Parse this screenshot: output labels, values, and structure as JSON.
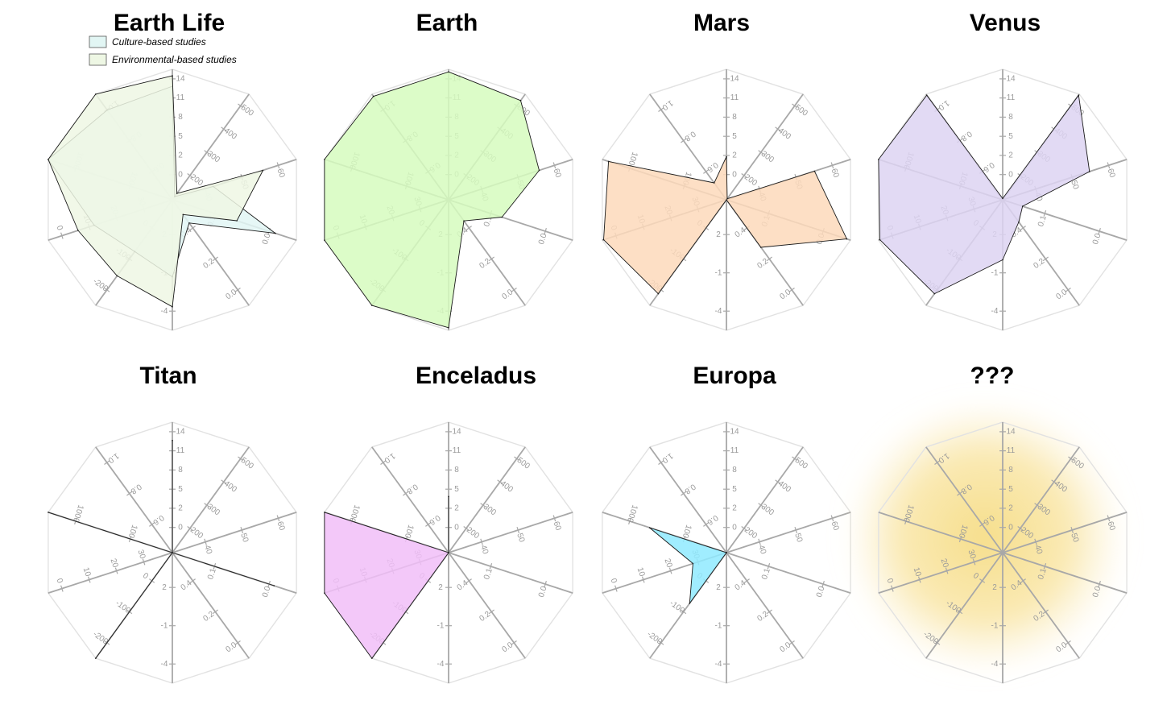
{
  "chart_data": {
    "type": "radar",
    "legend": {
      "placement": "top-left",
      "entries": [
        {
          "label": "Culture-based studies",
          "color": "#e2f6f4"
        },
        {
          "label": "Environmental-based studies",
          "color": "#eef7e4"
        }
      ]
    },
    "axes": [
      {
        "ticks": [
          "0",
          "2",
          "5",
          "8",
          "11",
          "14"
        ],
        "range": [
          -4,
          14
        ]
      },
      {
        "ticks": [
          "200",
          "300",
          "400",
          "500"
        ],
        "range": [
          100,
          500
        ]
      },
      {
        "ticks": [
          "40",
          "50",
          "60"
        ],
        "range": [
          30,
          60
        ]
      },
      {
        "ticks": [
          "0.1",
          "0.0"
        ],
        "range": [
          0.15,
          0.0
        ]
      },
      {
        "ticks": [
          "0.4",
          "0.2",
          "0.0"
        ],
        "range": [
          0.5,
          0.0
        ]
      },
      {
        "ticks": [
          "2",
          "-1",
          "-4"
        ],
        "range": [
          5,
          -4
        ]
      },
      {
        "ticks": [
          "0",
          "-100",
          "-200"
        ],
        "range": [
          100,
          -200
        ]
      },
      {
        "ticks": [
          "30",
          "20",
          "10",
          "0"
        ],
        "range": [
          40,
          0
        ]
      },
      {
        "ticks": [
          "100",
          "1000"
        ],
        "range": [
          10,
          1000
        ]
      },
      {
        "ticks": [
          "0.6",
          "0.8",
          "1.0"
        ],
        "range": [
          0.4,
          1.0
        ]
      }
    ],
    "panels": [
      {
        "title": "Earth Life",
        "series": [
          {
            "name": "Culture-based studies",
            "color": "#e2f6f4",
            "values": [
              0.87,
              0.03,
              0.33,
              0.83,
              0.22,
              0.59,
              0.49,
              0.63,
              1.0,
              0.85
            ]
          },
          {
            "name": "Environmental-based studies",
            "color": "#eef7e4",
            "values": [
              0.95,
              0.06,
              0.73,
              0.52,
              0.14,
              0.82,
              0.72,
              0.76,
              1.0,
              1.0
            ]
          }
        ]
      },
      {
        "title": "Earth",
        "series": [
          {
            "color": "#d6fcbe",
            "values": [
              0.98,
              0.94,
              0.73,
              0.43,
              0.2,
              0.98,
              1.0,
              1.0,
              1.0,
              0.98
            ]
          }
        ]
      },
      {
        "title": "Mars",
        "series": [
          {
            "color": "#fdd9bb",
            "values": [
              0.33,
              0.01,
              0.71,
              0.97,
              0.45,
              0.0,
              0.89,
              0.99,
              0.95,
              0.16
            ]
          }
        ]
      },
      {
        "title": "Venus",
        "series": [
          {
            "color": "#ddd4f2",
            "values": [
              0.01,
              0.99,
              0.7,
              0.16,
              0.21,
              0.46,
              0.89,
              0.99,
              1.0,
              0.99
            ]
          }
        ]
      },
      {
        "title": "Titan",
        "series": [
          {
            "color": "#5ee1cf",
            "values": [
              0.86,
              0.0,
              0.0,
              0.82,
              0.0,
              0.0,
              1.0,
              0.0,
              1.0,
              0.0
            ]
          }
        ]
      },
      {
        "title": "Enceladus",
        "series": [
          {
            "color": "#f1bef8",
            "values": [
              0.43,
              0.0,
              0.0,
              0.0,
              0.0,
              0.0,
              1.0,
              1.0,
              1.0,
              0.0
            ]
          }
        ]
      },
      {
        "title": "Europa",
        "series": [
          {
            "color": "#8feaff",
            "values": [
              0.0,
              0.0,
              0.0,
              0.0,
              0.0,
              0.0,
              0.48,
              0.27,
              0.62,
              0.0
            ]
          }
        ]
      },
      {
        "title": "???",
        "series": []
      }
    ]
  }
}
